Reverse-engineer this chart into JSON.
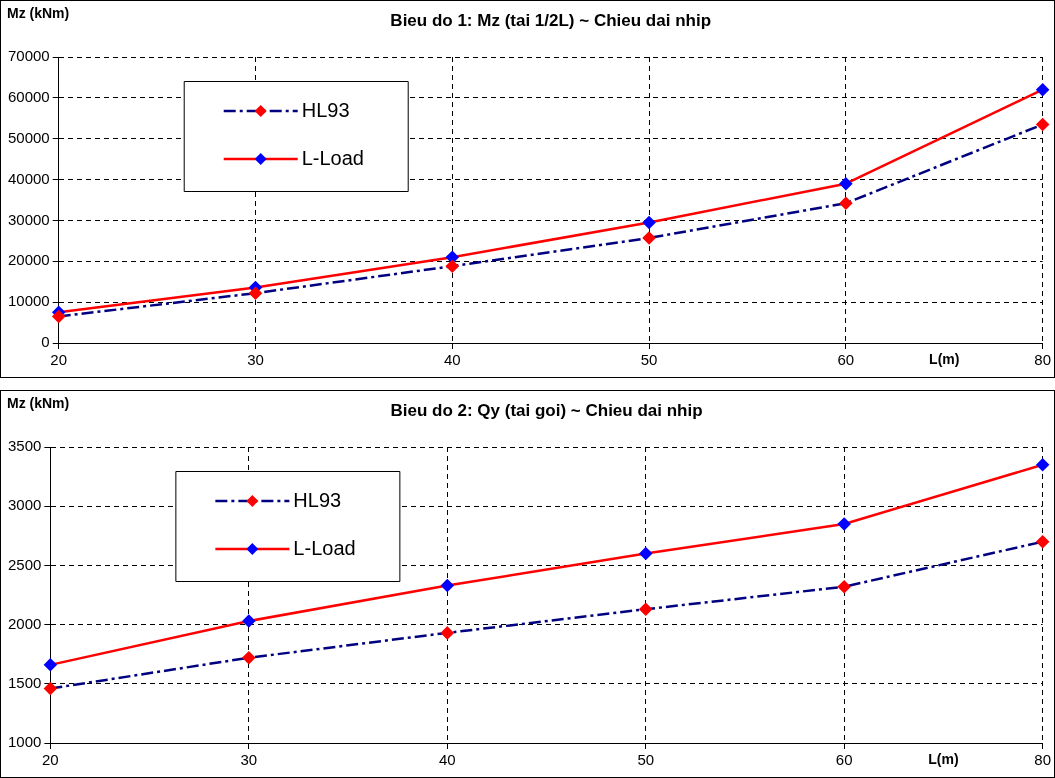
{
  "chart_data": [
    {
      "type": "line",
      "title": "Bieu do 1: Mz (tai 1/2L) ~ Chieu dai nhip",
      "ylabel": "Mz (kNm)",
      "xlabel": "L(m)",
      "categories": [
        "20",
        "30",
        "40",
        "50",
        "60",
        "80"
      ],
      "ylim": [
        0,
        70000
      ],
      "yticks": [
        0,
        10000,
        20000,
        30000,
        40000,
        50000,
        60000,
        70000
      ],
      "grid": true,
      "legend": "top left",
      "marker": "diamond",
      "series": [
        {
          "name": "HL93",
          "color": "#000080",
          "colors": [
            "#ff0000",
            "#ff0000",
            "#ff0000",
            "#ff0000",
            "#ff0000",
            "#ff0000"
          ],
          "line_style": "dashed",
          "values": [
            6500,
            12200,
            18800,
            25700,
            34200,
            53500
          ]
        },
        {
          "name": "L-Load",
          "color": "#ff0000",
          "colors": [
            "#0000ff",
            "#0000ff",
            "#0000ff",
            "#0000ff",
            "#0000ff",
            "#0000ff"
          ],
          "line_style": "solid",
          "values": [
            7500,
            13600,
            21000,
            29500,
            39000,
            62000
          ]
        }
      ]
    },
    {
      "type": "line",
      "title": "Bieu do 2: Qy (tai goi) ~ Chieu dai nhip",
      "ylabel": "Mz (kNm)",
      "xlabel": "L(m)",
      "categories": [
        "20",
        "30",
        "40",
        "50",
        "60",
        "80"
      ],
      "ylim": [
        1000,
        3500
      ],
      "yticks": [
        1000,
        1500,
        2000,
        2500,
        3000,
        3500
      ],
      "grid": true,
      "legend": "top left",
      "marker": "diamond",
      "series": [
        {
          "name": "HL93",
          "color": "#000080",
          "colors": [
            "#ff0000",
            "#ff0000",
            "#ff0000",
            "#ff0000",
            "#ff0000",
            "#ff0000"
          ],
          "line_style": "dashed",
          "values": [
            1460,
            1720,
            1930,
            2130,
            2320,
            2700
          ]
        },
        {
          "name": "L-Load",
          "color": "#ff0000",
          "colors": [
            "#0000ff",
            "#0000ff",
            "#0000ff",
            "#0000ff",
            "#0000ff",
            "#0000ff"
          ],
          "line_style": "solid",
          "values": [
            1660,
            2030,
            2330,
            2600,
            2850,
            3350
          ]
        }
      ]
    }
  ]
}
